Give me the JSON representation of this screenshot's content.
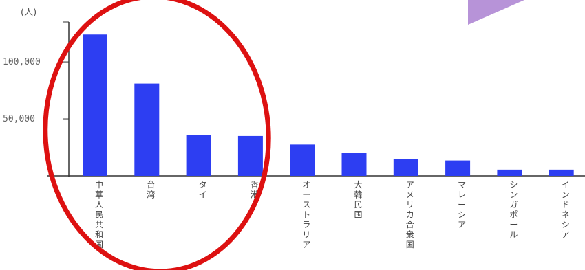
{
  "colors": {
    "bar": "#2d3ef2",
    "axis": "#333333",
    "annotation_ellipse": "#dd1111",
    "decoration_triangle": "#b793d8"
  },
  "chart_data": {
    "type": "bar",
    "ylabel": "(人)",
    "ylim": [
      0,
      135000
    ],
    "yticks": [
      {
        "value": 50000,
        "label": "50,000"
      },
      {
        "value": 100000,
        "label": "100,000"
      }
    ],
    "categories": [
      "中華人民共和国",
      "台湾",
      "タイ",
      "香港",
      "オーストラリア",
      "大韓民国",
      "アメリカ合衆国",
      "マレーシア",
      "シンガポール",
      "インドネシア"
    ],
    "values": [
      124000,
      81000,
      36000,
      35000,
      27500,
      20000,
      15000,
      13500,
      5500,
      5500
    ],
    "legend": "none",
    "grid": false,
    "annotations": [
      {
        "shape": "ellipse",
        "color": "red",
        "encloses": [
          "中華人民共和国",
          "台湾",
          "タイ",
          "香港"
        ]
      }
    ]
  }
}
